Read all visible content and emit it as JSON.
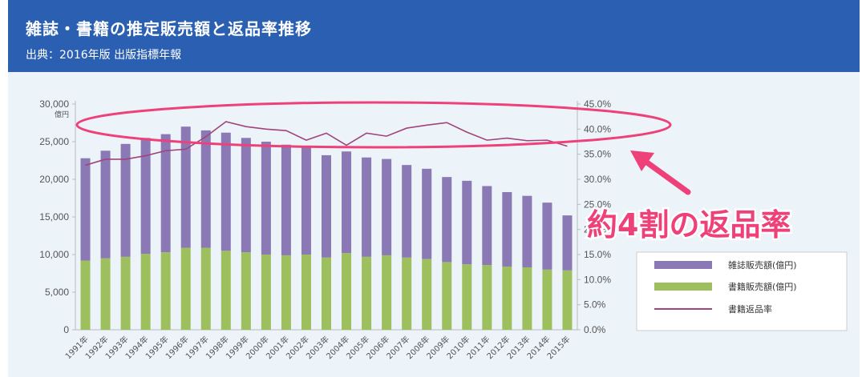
{
  "header": {
    "title": "雑誌・書籍の推定販売額と返品率推移",
    "source": "出典：2016年版 出版指標年報"
  },
  "annotation": {
    "callout_text": "約4割の返品率",
    "highlight_color": "#ee4179"
  },
  "colors": {
    "header_bg": "#2a5fb2",
    "magazine": "#8a79b5",
    "book": "#9ebf5d",
    "return_line": "#a0447a"
  },
  "chart_data": {
    "type": "bar",
    "stacked": true,
    "categories": [
      "1991年",
      "1992年",
      "1993年",
      "1994年",
      "1995年",
      "1996年",
      "1997年",
      "1998年",
      "1999年",
      "2000年",
      "2001年",
      "2002年",
      "2003年",
      "2004年",
      "2005年",
      "2006年",
      "2007年",
      "2008年",
      "2009年",
      "2010年",
      "2011年",
      "2012年",
      "2013年",
      "2014年",
      "2015年"
    ],
    "series": [
      {
        "name": "書籍販売額(億円)",
        "axis": "left",
        "values": [
          9200,
          9500,
          9700,
          10100,
          10300,
          10900,
          10900,
          10500,
          10300,
          10000,
          9900,
          10000,
          9600,
          10200,
          9700,
          9900,
          9600,
          9400,
          9000,
          8700,
          8600,
          8400,
          8300,
          8000,
          7900
        ]
      },
      {
        "name": "雑誌販売額(億円)",
        "axis": "left",
        "values": [
          13600,
          14300,
          15000,
          15400,
          15700,
          16100,
          15600,
          15700,
          15200,
          15000,
          14700,
          14300,
          13600,
          13500,
          13200,
          12800,
          12300,
          12000,
          11300,
          11100,
          10500,
          9900,
          9500,
          8900,
          7300
        ]
      },
      {
        "name": "書籍返品率",
        "type": "line",
        "axis": "right",
        "values": [
          32.8,
          34.0,
          34.0,
          34.7,
          35.7,
          36.0,
          38.5,
          41.5,
          40.5,
          40.0,
          39.7,
          37.8,
          39.2,
          36.8,
          39.2,
          38.6,
          40.2,
          40.8,
          41.3,
          39.4,
          37.8,
          38.2,
          37.7,
          37.8,
          36.6
        ]
      }
    ],
    "ylim": [
      0,
      30000
    ],
    "yticks": [
      "0",
      "5,000",
      "10,000",
      "15,000",
      "20,000",
      "25,000",
      "30,000"
    ],
    "ylabel": "億円",
    "y2lim": [
      0,
      45
    ],
    "y2ticks": [
      "0.0%",
      "5.0%",
      "10.0%",
      "15.0%",
      "20.0%",
      "25.0%",
      "30.0%",
      "35.0%",
      "40.0%",
      "45.0%"
    ],
    "legend": [
      {
        "label": "雑誌販売額(億円)",
        "kind": "bar"
      },
      {
        "label": "書籍販売額(億円)",
        "kind": "bar"
      },
      {
        "label": "書籍返品率",
        "kind": "line"
      }
    ],
    "legend_position": "bottom-right"
  }
}
